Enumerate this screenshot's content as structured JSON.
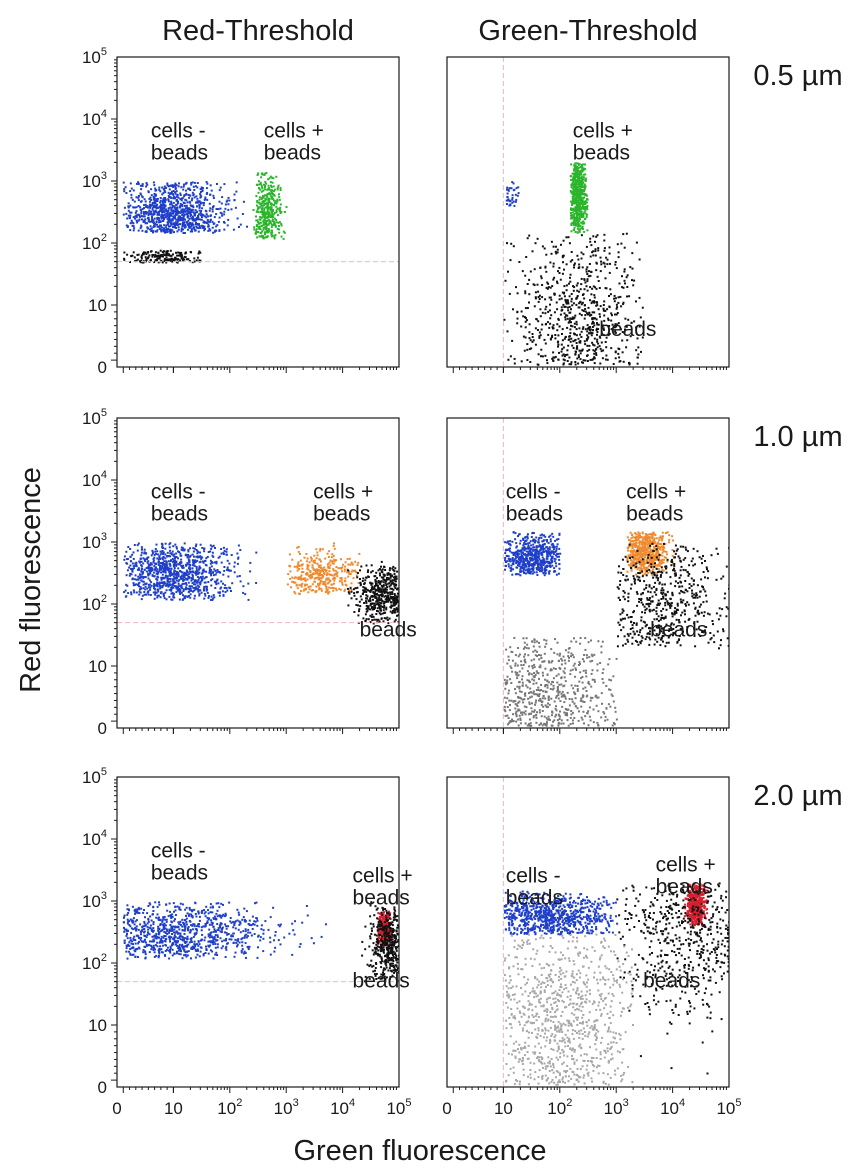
{
  "chart_data": [
    {
      "type": "scatter",
      "column_title": "Red-Threshold",
      "row_label": "0.5 µm",
      "populations": [
        {
          "label": "cells -\nbeads",
          "color": "#1f3fc8",
          "x": [
            1,
            200
          ],
          "y": [
            150,
            1000
          ],
          "center": [
            10,
            300
          ],
          "spread": [
            0.28,
            0.17
          ],
          "density": 0.82
        },
        {
          "label": "cells +\nbeads",
          "color": "#2bb52b",
          "x": [
            250,
            1000
          ],
          "y": [
            120,
            1500
          ],
          "center": [
            450,
            300
          ],
          "spread": [
            0.07,
            0.19
          ],
          "density": 0.3
        },
        {
          "label": "",
          "color": "#111111",
          "x": [
            1,
            30
          ],
          "y": [
            50,
            80
          ],
          "center": [
            8,
            60
          ],
          "spread": [
            0.2,
            0.05
          ],
          "density": 0.18
        }
      ],
      "annotations": [
        {
          "text": "cells -\nbeads",
          "x": 6,
          "y": 5000
        },
        {
          "text": "cells +\nbeads",
          "x": 400,
          "y": 5000
        }
      ],
      "threshold": {
        "axis": "y",
        "value": 50
      }
    },
    {
      "type": "scatter",
      "column_title": "Green-Threshold",
      "row_label": "",
      "populations": [
        {
          "label": "cells +\nbeads",
          "color": "#2bb52b",
          "x": [
            150,
            300
          ],
          "y": [
            150,
            2000
          ],
          "center": [
            200,
            600
          ],
          "spread": [
            0.05,
            0.25
          ],
          "density": 0.5
        },
        {
          "label": "",
          "color": "#1f3fc8",
          "x": [
            10,
            20
          ],
          "y": [
            400,
            1000
          ],
          "center": [
            13,
            600
          ],
          "spread": [
            0.05,
            0.1
          ],
          "density": 0.05
        },
        {
          "label": "beads",
          "color": "#111111",
          "x": [
            10,
            3000
          ],
          "y": [
            0.5,
            150
          ],
          "center": [
            200,
            5
          ],
          "spread": [
            0.35,
            0.6
          ],
          "density": 0.9
        }
      ],
      "annotations": [
        {
          "text": "cells +\nbeads",
          "x": 170,
          "y": 5000
        },
        {
          "text": "beads",
          "x": 500,
          "y": 5
        }
      ],
      "threshold": {
        "axis": "x",
        "value": 10
      }
    },
    {
      "type": "scatter",
      "column_title": "",
      "row_label": "1.0 µm",
      "populations": [
        {
          "label": "cells -\nbeads",
          "color": "#1f3fc8",
          "x": [
            1,
            300
          ],
          "y": [
            120,
            1000
          ],
          "center": [
            10,
            300
          ],
          "spread": [
            0.3,
            0.18
          ],
          "density": 0.82
        },
        {
          "label": "cells +\nbeads",
          "color": "#ef8a2f",
          "x": [
            1000,
            20000
          ],
          "y": [
            150,
            1000
          ],
          "center": [
            4000,
            300
          ],
          "spread": [
            0.2,
            0.12
          ],
          "density": 0.3
        },
        {
          "label": "beads",
          "color": "#111111",
          "x": [
            10000,
            100000
          ],
          "y": [
            50,
            500
          ],
          "center": [
            50000,
            150
          ],
          "spread": [
            0.15,
            0.15
          ],
          "density": 0.4
        }
      ],
      "annotations": [
        {
          "text": "cells -\nbeads",
          "x": 6,
          "y": 5000
        },
        {
          "text": "cells +\nbeads",
          "x": 3000,
          "y": 5000
        },
        {
          "text": "beads",
          "x": 20000,
          "y": 30
        }
      ],
      "threshold": {
        "axis": "y",
        "value": 50
      }
    },
    {
      "type": "scatter",
      "column_title": "",
      "row_label": "",
      "populations": [
        {
          "label": "cells -\nbeads",
          "color": "#1f3fc8",
          "x": [
            10,
            100
          ],
          "y": [
            300,
            1500
          ],
          "center": [
            30,
            600
          ],
          "spread": [
            0.18,
            0.12
          ],
          "density": 0.5
        },
        {
          "label": "cells +\nbeads",
          "color": "#ef8a2f",
          "x": [
            1500,
            10000
          ],
          "y": [
            300,
            1500
          ],
          "center": [
            3000,
            700
          ],
          "spread": [
            0.12,
            0.12
          ],
          "density": 0.45
        },
        {
          "label": "beads",
          "color": "#111111",
          "x": [
            1000,
            100000
          ],
          "y": [
            20,
            1000
          ],
          "center": [
            5000,
            100
          ],
          "spread": [
            0.4,
            0.4
          ],
          "density": 0.6
        },
        {
          "label": "",
          "color": "#777777",
          "x": [
            10,
            1000
          ],
          "y": [
            0.5,
            30
          ],
          "center": [
            50,
            3
          ],
          "spread": [
            0.4,
            0.5
          ],
          "density": 1.0
        }
      ],
      "annotations": [
        {
          "text": "cells -\nbeads",
          "x": 11,
          "y": 5000
        },
        {
          "text": "cells +\nbeads",
          "x": 1500,
          "y": 5000
        },
        {
          "text": "beads",
          "x": 4000,
          "y": 30
        }
      ],
      "threshold": {
        "axis": "x",
        "value": 10
      }
    },
    {
      "type": "scatter",
      "column_title": "",
      "row_label": "2.0 µm",
      "populations": [
        {
          "label": "cells -\nbeads",
          "color": "#1f3fc8",
          "x": [
            1,
            10000
          ],
          "y": [
            120,
            1000
          ],
          "center": [
            10,
            300
          ],
          "spread": [
            0.5,
            0.17
          ],
          "density": 0.85
        },
        {
          "label": "cells +\nbeads",
          "color": "#d61f2e",
          "x": [
            40000,
            70000
          ],
          "y": [
            200,
            700
          ],
          "center": [
            55000,
            350
          ],
          "spread": [
            0.05,
            0.1
          ],
          "density": 0.3
        },
        {
          "label": "beads",
          "color": "#111111",
          "x": [
            20000,
            100000
          ],
          "y": [
            50,
            1000
          ],
          "center": [
            60000,
            200
          ],
          "spread": [
            0.1,
            0.2
          ],
          "density": 0.35
        }
      ],
      "annotations": [
        {
          "text": "cells -\nbeads",
          "x": 6,
          "y": 5000
        },
        {
          "text": "cells +\nbeads",
          "x": 15000,
          "y": 2000
        },
        {
          "text": "beads",
          "x": 15000,
          "y": 40
        }
      ],
      "threshold": {
        "axis": "y",
        "value": 50
      }
    },
    {
      "type": "scatter",
      "column_title": "",
      "row_label": "",
      "populations": [
        {
          "label": "cells -\nbeads",
          "color": "#1f3fc8",
          "x": [
            10,
            1000
          ],
          "y": [
            300,
            1500
          ],
          "center": [
            50,
            600
          ],
          "spread": [
            0.4,
            0.12
          ],
          "density": 0.75
        },
        {
          "label": "cells +\nbeads",
          "color": "#d61f2e",
          "x": [
            15000,
            40000
          ],
          "y": [
            400,
            2000
          ],
          "center": [
            25000,
            900
          ],
          "spread": [
            0.05,
            0.1
          ],
          "density": 0.35
        },
        {
          "label": "beads",
          "color": "#111111",
          "x": [
            1000,
            100000
          ],
          "y": [
            1,
            2000
          ],
          "center": [
            20000,
            300
          ],
          "spread": [
            0.4,
            0.4
          ],
          "density": 0.5
        },
        {
          "label": "",
          "color": "#a8a8a8",
          "x": [
            10,
            2000
          ],
          "y": [
            0.5,
            300
          ],
          "center": [
            100,
            10
          ],
          "spread": [
            0.45,
            0.6
          ],
          "density": 1.0
        }
      ],
      "annotations": [
        {
          "text": "cells -\nbeads",
          "x": 11,
          "y": 2000
        },
        {
          "text": "cells +\nbeads",
          "x": 5000,
          "y": 3000
        },
        {
          "text": "beads",
          "x": 3000,
          "y": 40
        }
      ],
      "threshold": {
        "axis": "x",
        "value": 10
      }
    }
  ],
  "axes": {
    "xlabel": "Green fluorescence",
    "ylabel": "Red fluorescence",
    "scale": "biexponential (log with 0)",
    "xlim": [
      0,
      100000
    ],
    "ylim": [
      0,
      100000
    ],
    "ticks": [
      {
        "value": 0,
        "base": "0",
        "exp": ""
      },
      {
        "value": 10,
        "base": "10",
        "exp": ""
      },
      {
        "value": 100,
        "base": "10",
        "exp": "2"
      },
      {
        "value": 1000,
        "base": "10",
        "exp": "3"
      },
      {
        "value": 10000,
        "base": "10",
        "exp": "4"
      },
      {
        "value": 100000,
        "base": "10",
        "exp": "5"
      }
    ],
    "x_ticks_shown_on_bottom_row_only": true,
    "y_ticks_shown_on_left_column_only": true
  },
  "colors": {
    "cells_minus_beads": "#1f3fc8",
    "cells_plus_beads_0_5um": "#2bb52b",
    "cells_plus_beads_1_0um": "#ef8a2f",
    "cells_plus_beads_2_0um": "#d61f2e",
    "beads": "#111111",
    "threshold_line": "#f2b7bd"
  }
}
